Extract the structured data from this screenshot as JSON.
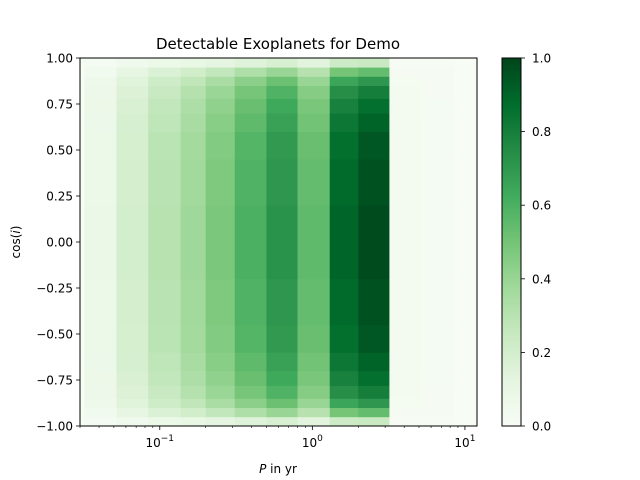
{
  "chart_data": {
    "type": "heatmap",
    "title": "Detectable Exoplanets for Demo",
    "xlabel": "P in yr",
    "xlabel_italic_symbol": "P",
    "xlabel_rest": " in yr",
    "ylabel": "cos(i)",
    "ylabel_prefix": "cos(",
    "ylabel_italic_symbol": "i",
    "ylabel_suffix": ")",
    "x_scale": "log",
    "xlim": [
      0.03,
      12
    ],
    "ylim": [
      -1.0,
      1.0
    ],
    "x_ticks": [
      {
        "value": 0.1,
        "base": "10",
        "exp": "−1"
      },
      {
        "value": 1,
        "base": "10",
        "exp": "0"
      },
      {
        "value": 10,
        "base": "10",
        "exp": "1"
      }
    ],
    "y_ticks": [
      {
        "value": 1.0,
        "label": "1.00"
      },
      {
        "value": 0.75,
        "label": "0.75"
      },
      {
        "value": 0.5,
        "label": "0.50"
      },
      {
        "value": 0.25,
        "label": "0.25"
      },
      {
        "value": 0.0,
        "label": "0.00"
      },
      {
        "value": -0.25,
        "label": "−0.25"
      },
      {
        "value": -0.5,
        "label": "−0.50"
      },
      {
        "value": -0.75,
        "label": "−0.75"
      },
      {
        "value": -1.0,
        "label": "−1.00"
      }
    ],
    "x_bin_edges": [
      0.032,
      0.052,
      0.084,
      0.137,
      0.2,
      0.31,
      0.5,
      0.8,
      1.3,
      2.0,
      3.2,
      5.2,
      8.4
    ],
    "y_bin_edges": [
      -1.0,
      -0.95,
      -0.9,
      -0.85,
      -0.78,
      -0.7,
      -0.6,
      -0.45,
      -0.2,
      0.2,
      0.45,
      0.6,
      0.7,
      0.78,
      0.85,
      0.9,
      0.95,
      1.0
    ],
    "column_levels": [
      0.08,
      0.2,
      0.3,
      0.38,
      0.48,
      0.6,
      0.72,
      0.55,
      0.9,
      0.98,
      0.03,
      0.02
    ],
    "row_factors": [
      0.25,
      0.55,
      0.72,
      0.82,
      0.88,
      0.92,
      0.96,
      0.98,
      1.0,
      0.98,
      0.96,
      0.92,
      0.88,
      0.82,
      0.72,
      0.55,
      0.25
    ],
    "colorbar": {
      "colormap": "Greens",
      "range": [
        0.0,
        1.0
      ],
      "ticks": [
        {
          "value": 0.0,
          "label": "0.0"
        },
        {
          "value": 0.2,
          "label": "0.2"
        },
        {
          "value": 0.4,
          "label": "0.4"
        },
        {
          "value": 0.6,
          "label": "0.6"
        },
        {
          "value": 0.8,
          "label": "0.8"
        },
        {
          "value": 1.0,
          "label": "1.0"
        }
      ]
    },
    "background_color": "#f7fcf5",
    "grid": false
  }
}
